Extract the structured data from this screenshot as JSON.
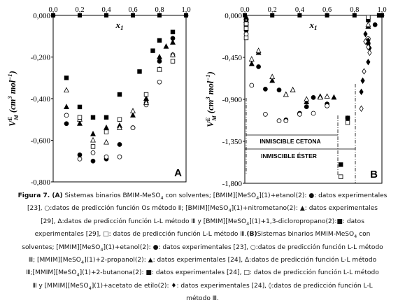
{
  "chart_data": [
    {
      "panel_label": "A",
      "type": "scatter",
      "xlabel": "x",
      "xlabel_sub": "1",
      "ylabel_parts": [
        "V",
        "E",
        "M",
        " (cm",
        "3",
        " mol",
        "−1",
        ")"
      ],
      "xlim": [
        0,
        1
      ],
      "ylim": [
        -0.8,
        0.0
      ],
      "x_ticks": [
        "0,0",
        "0,2",
        "0,4",
        "0,6",
        "0,8",
        "1,0"
      ],
      "y_ticks": [
        "0,000",
        "-0,200",
        "-0,400",
        "-0,600",
        "-0,800"
      ],
      "y_tick_values": [
        0,
        -0.2,
        -0.4,
        -0.6,
        -0.8
      ],
      "series": [
        {
          "marker": "filled-circle",
          "points": [
            [
              0,
              0
            ],
            [
              0.1,
              -0.52
            ],
            [
              0.2,
              -0.67
            ],
            [
              0.3,
              -0.7
            ],
            [
              0.4,
              -0.69
            ],
            [
              0.5,
              -0.62
            ],
            [
              0.6,
              -0.54
            ],
            [
              0.7,
              -0.42
            ],
            [
              0.8,
              -0.22
            ],
            [
              0.9,
              -0.11
            ],
            [
              1,
              0
            ]
          ]
        },
        {
          "marker": "open-circle",
          "points": [
            [
              0.1,
              -0.48
            ],
            [
              0.2,
              -0.69
            ],
            [
              0.3,
              -0.66
            ],
            [
              0.4,
              -0.68
            ],
            [
              0.5,
              -0.68
            ],
            [
              0.6,
              -0.54
            ],
            [
              0.7,
              -0.43
            ],
            [
              0.8,
              -0.32
            ],
            [
              0.9,
              -0.19
            ]
          ]
        },
        {
          "marker": "filled-triangle",
          "points": [
            [
              0.1,
              -0.44
            ],
            [
              0.2,
              -0.52
            ],
            [
              0.3,
              -0.57
            ],
            [
              0.4,
              -0.54
            ],
            [
              0.5,
              -0.53
            ],
            [
              0.6,
              -0.48
            ],
            [
              0.7,
              -0.4
            ],
            [
              0.8,
              -0.2
            ],
            [
              0.85,
              -0.15
            ],
            [
              0.9,
              -0.13
            ]
          ]
        },
        {
          "marker": "open-triangle",
          "points": [
            [
              0.1,
              -0.36
            ],
            [
              0.2,
              -0.5
            ],
            [
              0.3,
              -0.6
            ],
            [
              0.4,
              -0.61
            ],
            [
              0.5,
              -0.54
            ],
            [
              0.6,
              -0.46
            ],
            [
              0.7,
              -0.42
            ],
            [
              0.8,
              -0.26
            ],
            [
              0.9,
              -0.19
            ]
          ]
        },
        {
          "marker": "filled-square",
          "points": [
            [
              0.1,
              -0.3
            ],
            [
              0.2,
              -0.44
            ],
            [
              0.3,
              -0.49
            ],
            [
              0.4,
              -0.49
            ],
            [
              0.5,
              -0.38
            ],
            [
              0.65,
              -0.27
            ],
            [
              0.75,
              -0.17
            ],
            [
              0.8,
              -0.12
            ],
            [
              0.9,
              -0.08
            ]
          ]
        },
        {
          "marker": "open-square",
          "points": [
            [
              0.2,
              -0.49
            ],
            [
              0.3,
              -0.63
            ],
            [
              0.4,
              -0.56
            ],
            [
              0.5,
              -0.5
            ],
            [
              0.7,
              -0.38
            ],
            [
              0.8,
              -0.26
            ],
            [
              0.9,
              -0.22
            ]
          ]
        }
      ]
    },
    {
      "panel_label": "B",
      "type": "scatter",
      "xlabel": "x",
      "xlabel_sub": "1",
      "ylabel_parts": [
        "V",
        "E",
        "M",
        " (cm",
        "3",
        " mol",
        "−1",
        ")"
      ],
      "xlim": [
        0,
        1
      ],
      "ylim": [
        -1.8,
        0.0
      ],
      "x_ticks": [
        "0,0",
        "0,2",
        "0,4",
        "0,6",
        "0,8",
        "1,0"
      ],
      "y_ticks": [
        "0,000",
        "-0,450",
        "-0,900",
        "-1,350",
        "-1,800"
      ],
      "y_tick_values": [
        0,
        -0.45,
        -0.9,
        -1.35,
        -1.8
      ],
      "annotations": [
        "INMISCIBLE CETONA",
        "INMISCIBLE ÉSTER"
      ],
      "series": [
        {
          "marker": "filled-circle",
          "points": [
            [
              0.01,
              -0.05
            ],
            [
              0.01,
              -0.1
            ],
            [
              0.01,
              -0.16
            ],
            [
              0.1,
              -0.55
            ],
            [
              0.15,
              -0.79
            ],
            [
              0.25,
              -0.8
            ],
            [
              0.3,
              -1.12
            ],
            [
              0.4,
              -1.05
            ],
            [
              0.45,
              -0.98
            ],
            [
              0.5,
              -0.88
            ],
            [
              0.6,
              -0.95
            ],
            [
              0.75,
              -1.1
            ],
            [
              0.9,
              -0.3
            ],
            [
              0.95,
              -0.1
            ],
            [
              1,
              0
            ]
          ]
        },
        {
          "marker": "open-circle",
          "points": [
            [
              0.01,
              -0.2
            ],
            [
              0.05,
              -0.75
            ],
            [
              0.15,
              -1.06
            ],
            [
              0.25,
              -1.13
            ],
            [
              0.3,
              -1.13
            ],
            [
              0.4,
              -1.06
            ],
            [
              0.5,
              -1.05
            ],
            [
              0.6,
              -0.97
            ],
            [
              0.9,
              -0.25
            ]
          ]
        },
        {
          "marker": "filled-triangle",
          "points": [
            [
              0.01,
              -0.02
            ],
            [
              0.05,
              -0.52
            ],
            [
              0.1,
              -0.4
            ],
            [
              0.2,
              -0.7
            ],
            [
              0.3,
              -0.85
            ],
            [
              0.35,
              -0.8
            ],
            [
              0.45,
              -0.93
            ],
            [
              0.55,
              -0.87
            ],
            [
              0.65,
              -0.88
            ],
            [
              0.9,
              -0.12
            ]
          ]
        },
        {
          "marker": "open-triangle",
          "points": [
            [
              0.01,
              -0.06
            ],
            [
              0.05,
              -0.47
            ],
            [
              0.1,
              -0.38
            ],
            [
              0.2,
              -0.66
            ],
            [
              0.3,
              -0.85
            ],
            [
              0.35,
              -0.8
            ],
            [
              0.45,
              -0.9
            ],
            [
              0.55,
              -0.88
            ],
            [
              0.6,
              -0.87
            ],
            [
              0.9,
              -0.1
            ]
          ]
        },
        {
          "marker": "filled-square",
          "points": [
            [
              0.01,
              -0.08
            ],
            [
              0.01,
              -0.12
            ],
            [
              0.75,
              -1.1
            ],
            [
              0.7,
              -1.6
            ],
            [
              0.9,
              -0.05
            ],
            [
              0.98,
              0
            ]
          ]
        },
        {
          "marker": "open-square",
          "points": [
            [
              0.01,
              -0.09
            ],
            [
              0.01,
              -0.14
            ],
            [
              0.01,
              -0.24
            ],
            [
              0.75,
              -1.15
            ],
            [
              0.7,
              -1.73
            ],
            [
              0.9,
              -0.02
            ]
          ]
        },
        {
          "marker": "filled-diamond",
          "points": [
            [
              0.88,
              -0.2
            ],
            [
              0.9,
              -0.27
            ],
            [
              0.91,
              -0.35
            ],
            [
              0.9,
              -0.5
            ],
            [
              0.86,
              -0.7
            ],
            [
              0.85,
              -0.82
            ]
          ]
        },
        {
          "marker": "open-diamond",
          "points": [
            [
              0.88,
              -0.28
            ],
            [
              0.9,
              -0.34
            ],
            [
              0.91,
              -0.4
            ],
            [
              0.87,
              -0.6
            ],
            [
              0.85,
              -1.0
            ]
          ]
        }
      ]
    }
  ],
  "caption_lines": [
    [
      {
        "b": true,
        "t": "Figura 7. (A)"
      },
      {
        "t": " Sistemas binarios BMIM-MeSO"
      },
      {
        "sub": "4"
      },
      {
        "t": " con solventes; [BMIM][MeSO"
      },
      {
        "sub": "4"
      },
      {
        "t": "](1)+etanol(2): ●: datos experimentales"
      }
    ],
    [
      {
        "t": "[23], ○:datos de predicción función Os método Ⅱ; [BMIM][MeSO"
      },
      {
        "sub": "4"
      },
      {
        "t": "](1)+nitrometano(2): ▲: datos experimentales"
      }
    ],
    [
      {
        "t": "[29], Δ:datos de predicción función L-L método Ⅲ y [BMIM][MeSO"
      },
      {
        "sub": "4"
      },
      {
        "t": "](1)+1,3-dicloropropano(2):■: datos"
      }
    ],
    [
      {
        "t": "experimentales [29], □:  datos de predicción función L-L método Ⅲ."
      },
      {
        "b": true,
        "t": "(B)"
      },
      {
        "t": "Sistemas binarios MMIM-MeSO"
      },
      {
        "sub": "4"
      },
      {
        "t": " con"
      }
    ],
    [
      {
        "t": "solventes; [MMIM][MeSO"
      },
      {
        "sub": "4"
      },
      {
        "t": "](1)+etanol(2): ●: datos experimentales [23], ○:datos de predicción función L-L método"
      }
    ],
    [
      {
        "t": "Ⅲ; [MMIM][MeSO"
      },
      {
        "sub": "4"
      },
      {
        "t": "](1)+2-propanol(2): ▲: datos experimentales [24], Δ:datos de predicción función L-L método"
      }
    ],
    [
      {
        "t": "Ⅲ;[MMIM][MeSO"
      },
      {
        "sub": "4"
      },
      {
        "t": "](1)+2-butanona(2): ■: datos experimentales [24], □:  datos de predicción función L-L método"
      }
    ],
    [
      {
        "t": "Ⅲ y [MMIM][MeSO"
      },
      {
        "sub": "4"
      },
      {
        "t": "](1)+acetato de etilo(2): ♦: datos experimentales [24], ◊:datos de predicción función L-L"
      }
    ],
    [
      {
        "t": "método Ⅲ."
      }
    ]
  ]
}
